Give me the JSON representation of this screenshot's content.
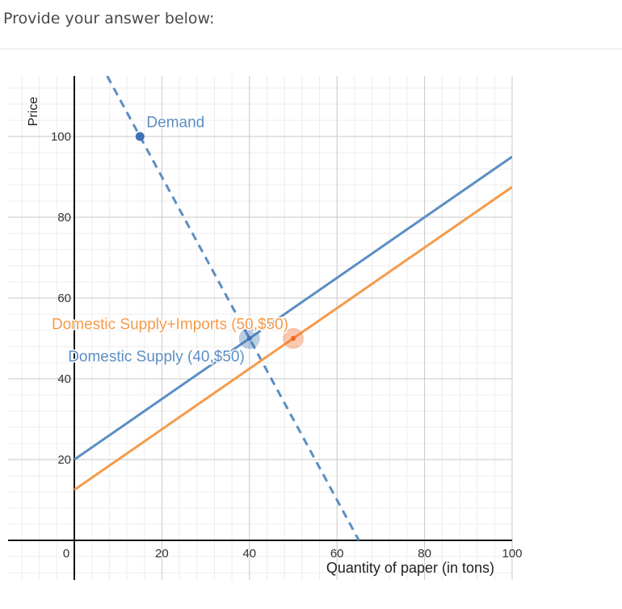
{
  "prompt": "Provide your answer below:",
  "chart_data": {
    "type": "line",
    "xlabel": "Quantity of paper (in tons)",
    "ylabel": "Price",
    "xlim": [
      -15,
      100
    ],
    "ylim": [
      -10,
      115
    ],
    "x_ticks": [
      0,
      20,
      40,
      60,
      80,
      100
    ],
    "y_ticks": [
      20,
      40,
      60,
      80,
      100
    ],
    "grid": true,
    "series": [
      {
        "name": "Demand",
        "style": "dashed",
        "color": "#5b8ec3",
        "x": [
          7.5,
          65
        ],
        "y": [
          115,
          0
        ]
      },
      {
        "name": "Domestic Supply",
        "style": "solid",
        "color": "#5b8ec3",
        "x": [
          0,
          100
        ],
        "y": [
          20,
          95
        ]
      },
      {
        "name": "Domestic Supply+Imports",
        "style": "solid",
        "color": "#f59a4a",
        "x": [
          0,
          100
        ],
        "y": [
          12.5,
          87.5
        ]
      }
    ],
    "points": [
      {
        "x": 15,
        "y": 100,
        "color": "#3e72b3",
        "highlight": false
      },
      {
        "x": 40,
        "y": 50,
        "color": "#3e72b3",
        "highlight": true
      },
      {
        "x": 50,
        "y": 50,
        "color": "#f26522",
        "highlight": true
      }
    ],
    "annotations": [
      {
        "text": "Demand",
        "color": "#5b8ec3",
        "x": 16.5,
        "y": 103.5
      },
      {
        "text": "Domestic Supply+Imports (50,$50)",
        "color": "#f59a4a",
        "x": 50,
        "y": 53.5
      },
      {
        "text": "Domestic Supply (40,$50)",
        "color": "#5b8ec3",
        "x": 40,
        "y": 45.5
      }
    ]
  }
}
